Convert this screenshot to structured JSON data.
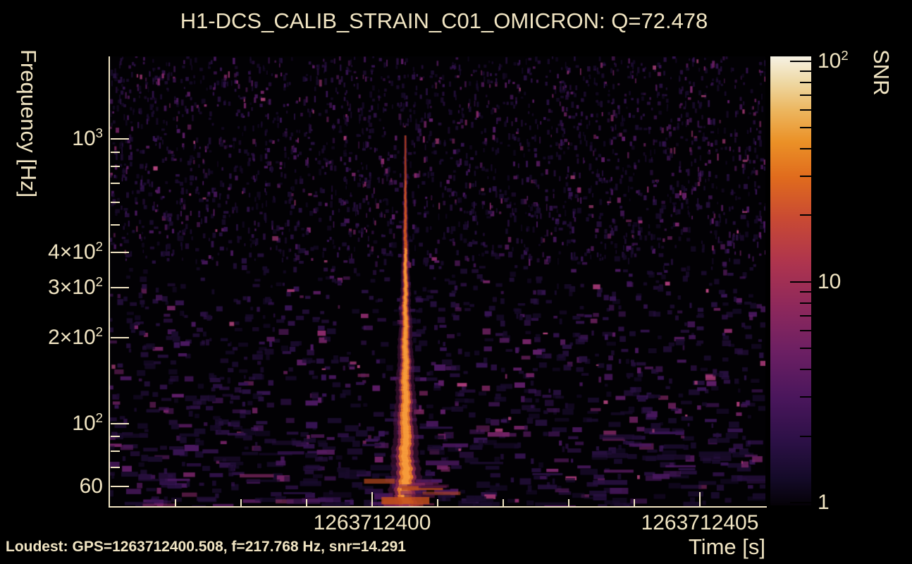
{
  "title": "H1-DCS_CALIB_STRAIN_C01_OMICRON: Q=72.478",
  "footer": "Loudest: GPS=1263712400.508, f=217.768 Hz, snr=14.291",
  "colors": {
    "background": "#000000",
    "text": "#f1e5c3",
    "axis": "#f1e5c3",
    "colorbar_tick": "#000000",
    "spike_core": "#f08227",
    "noise_purple": "#4a185f"
  },
  "chart_data": {
    "type": "heatmap",
    "subtype": "omicron-q-scan-spectrogram",
    "title": "H1-DCS_CALIB_STRAIN_C01_OMICRON: Q=72.478",
    "q_value": 72.478,
    "xlabel": "Time [s]",
    "ylabel": "Frequency [Hz]",
    "colorbar_label": "SNR",
    "x_range": [
      1263712396,
      1263712406
    ],
    "y_range_hz": [
      51,
      1950
    ],
    "x_scale": "linear",
    "y_scale": "log",
    "colorbar_scale": "log",
    "colorbar_range": [
      1,
      100
    ],
    "grid": false,
    "loudest": {
      "gps": 1263712400.508,
      "frequency_hz": 217.768,
      "snr": 14.291
    },
    "x_ticks": [
      {
        "v": 1263712397,
        "major": false
      },
      {
        "v": 1263712398,
        "major": false
      },
      {
        "v": 1263712399,
        "major": false
      },
      {
        "v": 1263712400,
        "major": true,
        "label": "1263712400"
      },
      {
        "v": 1263712401,
        "major": false
      },
      {
        "v": 1263712402,
        "major": false
      },
      {
        "v": 1263712403,
        "major": false
      },
      {
        "v": 1263712404,
        "major": false
      },
      {
        "v": 1263712405,
        "major": true,
        "label": "1263712405"
      }
    ],
    "y_ticks": [
      {
        "v": 1000,
        "major": true,
        "label": "10^3"
      },
      {
        "v": 900,
        "major": false
      },
      {
        "v": 800,
        "major": false
      },
      {
        "v": 700,
        "major": false
      },
      {
        "v": 600,
        "major": false
      },
      {
        "v": 500,
        "major": false
      },
      {
        "v": 400,
        "major": true,
        "label": "4×10^2"
      },
      {
        "v": 300,
        "major": true,
        "label": "3×10^2"
      },
      {
        "v": 200,
        "major": true,
        "label": "2×10^2"
      },
      {
        "v": 100,
        "major": true,
        "label": "10^2"
      },
      {
        "v": 90,
        "major": false
      },
      {
        "v": 80,
        "major": false
      },
      {
        "v": 70,
        "major": false
      },
      {
        "v": 60,
        "major": true,
        "label": "60"
      }
    ],
    "colorbar_ticks": [
      {
        "v": 1,
        "major": true,
        "label": "1"
      },
      {
        "v": 2,
        "major": false
      },
      {
        "v": 3,
        "major": false
      },
      {
        "v": 4,
        "major": false
      },
      {
        "v": 5,
        "major": false
      },
      {
        "v": 6,
        "major": false
      },
      {
        "v": 7,
        "major": false
      },
      {
        "v": 8,
        "major": false
      },
      {
        "v": 9,
        "major": false
      },
      {
        "v": 10,
        "major": true,
        "label": "10"
      },
      {
        "v": 20,
        "major": false
      },
      {
        "v": 30,
        "major": false
      },
      {
        "v": 40,
        "major": false
      },
      {
        "v": 50,
        "major": false
      },
      {
        "v": 60,
        "major": false
      },
      {
        "v": 70,
        "major": false
      },
      {
        "v": 80,
        "major": false
      },
      {
        "v": 90,
        "major": false
      },
      {
        "v": 100,
        "major": true,
        "label": "10^2"
      }
    ],
    "colormap_stops": [
      [
        0.0,
        "#050207"
      ],
      [
        0.06,
        "#140a28"
      ],
      [
        0.14,
        "#2b1045"
      ],
      [
        0.24,
        "#4a165c"
      ],
      [
        0.34,
        "#6b1f63"
      ],
      [
        0.44,
        "#8d285c"
      ],
      [
        0.54,
        "#ae344e"
      ],
      [
        0.64,
        "#c94a33"
      ],
      [
        0.73,
        "#e06b1d"
      ],
      [
        0.81,
        "#eb9127"
      ],
      [
        0.88,
        "#ecb65f"
      ],
      [
        0.94,
        "#eed7a1"
      ],
      [
        1.0,
        "#f6f2e4"
      ]
    ]
  }
}
